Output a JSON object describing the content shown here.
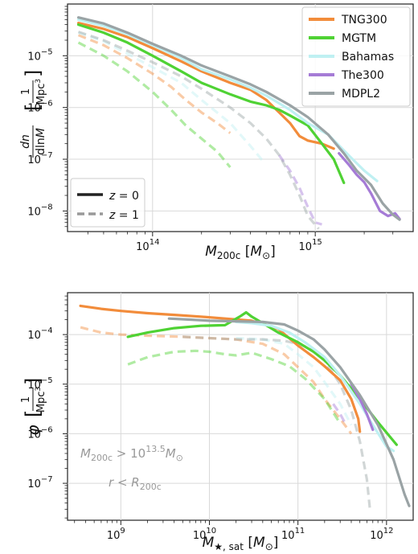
{
  "chart_data": [
    {
      "type": "line",
      "xscale": "log",
      "yscale": "log",
      "xlabel": "M_200c [M_⊙]",
      "ylabel": "dn / dlnM [1/Mpc³]",
      "xlim": [
        30000000000000.0,
        4000000000000000.0
      ],
      "ylim": [
        4e-09,
        0.0001
      ],
      "grid": true,
      "x_ticks": [
        {
          "value": 100000000000000.0,
          "label": "10",
          "exp": "14"
        },
        {
          "value": 1000000000000000.0,
          "label": "10",
          "exp": "15"
        }
      ],
      "y_ticks": [
        {
          "value": 1e-08,
          "label": "10",
          "exp": "−8"
        },
        {
          "value": 1e-07,
          "label": "10",
          "exp": "−7"
        },
        {
          "value": 1e-06,
          "label": "10",
          "exp": "−6"
        },
        {
          "value": 1e-05,
          "label": "10",
          "exp": "−5"
        }
      ],
      "legend_placement": "top-right",
      "style_legend_placement": "bottom-left",
      "style_legend": [
        {
          "label": "z = 0",
          "dash": "solid"
        },
        {
          "label": "z = 1",
          "dash": "dashed"
        }
      ],
      "series": [
        {
          "name": "TNG300",
          "color": "#f28c3b",
          "z": 0,
          "x": [
            35000000000000.0,
            50000000000000.0,
            70000000000000.0,
            100000000000000.0,
            150000000000000.0,
            200000000000000.0,
            300000000000000.0,
            400000000000000.0,
            500000000000000.0,
            600000000000000.0,
            700000000000000.0,
            800000000000000.0,
            900000000000000.0,
            1100000000000000.0,
            1300000000000000.0
          ],
          "y": [
            4.3e-05,
            3.3e-05,
            2.3e-05,
            1.4e-05,
            7.8e-06,
            5e-06,
            3e-06,
            2.2e-06,
            1.4e-06,
            8e-07,
            5e-07,
            2.8e-07,
            2.3e-07,
            2e-07,
            1.6e-07
          ]
        },
        {
          "name": "MGTM",
          "color": "#4fd234",
          "z": 0,
          "x": [
            35000000000000.0,
            50000000000000.0,
            70000000000000.0,
            100000000000000.0,
            150000000000000.0,
            200000000000000.0,
            300000000000000.0,
            400000000000000.0,
            500000000000000.0,
            600000000000000.0,
            700000000000000.0,
            900000000000000.0,
            1100000000000000.0,
            1300000000000000.0,
            1500000000000000.0
          ],
          "y": [
            4e-05,
            2.8e-05,
            1.8e-05,
            1e-05,
            5e-06,
            3e-06,
            1.8e-06,
            1.3e-06,
            1.1e-06,
            9e-07,
            7e-07,
            4.5e-07,
            2e-07,
            1e-07,
            3.5e-08
          ]
        },
        {
          "name": "Bahamas",
          "color": "#bff0f2",
          "z": 0,
          "x": [
            35000000000000.0,
            50000000000000.0,
            70000000000000.0,
            100000000000000.0,
            150000000000000.0,
            200000000000000.0,
            300000000000000.0,
            400000000000000.0,
            500000000000000.0,
            700000000000000.0,
            900000000000000.0,
            1200000000000000.0,
            1600000000000000.0,
            2000000000000000.0,
            2400000000000000.0
          ],
          "y": [
            5e-05,
            3.8e-05,
            2.6e-05,
            1.6e-05,
            9e-06,
            5.5e-06,
            3.5e-06,
            2.4e-06,
            1.7e-06,
            9e-07,
            5e-07,
            3e-07,
            1.2e-07,
            6e-08,
            3.8e-08
          ]
        },
        {
          "name": "The300",
          "color": "#a57bd6",
          "z": 0,
          "x": [
            1400000000000000.0,
            1600000000000000.0,
            1800000000000000.0,
            2000000000000000.0,
            2200000000000000.0,
            2500000000000000.0,
            2800000000000000.0,
            3100000000000000.0,
            3300000000000000.0
          ],
          "y": [
            1.3e-07,
            8e-08,
            5e-08,
            3.6e-08,
            2.2e-08,
            1e-08,
            8e-09,
            9e-09,
            7e-09
          ]
        },
        {
          "name": "MDPL2",
          "color": "#9aa3a5",
          "z": 0,
          "x": [
            35000000000000.0,
            50000000000000.0,
            70000000000000.0,
            100000000000000.0,
            150000000000000.0,
            200000000000000.0,
            300000000000000.0,
            400000000000000.0,
            500000000000000.0,
            700000000000000.0,
            900000000000000.0,
            1200000000000000.0,
            1500000000000000.0,
            1800000000000000.0,
            2200000000000000.0,
            2600000000000000.0,
            3000000000000000.0,
            3300000000000000.0
          ],
          "y": [
            5.5e-05,
            4.2e-05,
            2.8e-05,
            1.7e-05,
            1e-05,
            6.5e-06,
            4e-06,
            2.8e-06,
            2e-06,
            1.1e-06,
            6.5e-07,
            3e-07,
            1.3e-07,
            6e-08,
            3.2e-08,
            1.4e-08,
            8.5e-09,
            6.8e-09
          ]
        },
        {
          "name": "TNG300",
          "color": "#f28c3b",
          "z": 1,
          "x": [
            35000000000000.0,
            50000000000000.0,
            70000000000000.0,
            100000000000000.0,
            130000000000000.0,
            160000000000000.0,
            200000000000000.0,
            250000000000000.0,
            300000000000000.0
          ],
          "y": [
            2.5e-05,
            1.6e-05,
            9e-06,
            4.5e-06,
            2.5e-06,
            1.4e-06,
            8e-07,
            5e-07,
            3.2e-07
          ]
        },
        {
          "name": "MGTM",
          "color": "#4fd234",
          "z": 1,
          "x": [
            35000000000000.0,
            50000000000000.0,
            70000000000000.0,
            100000000000000.0,
            130000000000000.0,
            160000000000000.0,
            200000000000000.0,
            250000000000000.0,
            300000000000000.0
          ],
          "y": [
            1.8e-05,
            1e-05,
            5e-06,
            2e-06,
            9e-07,
            4.5e-07,
            2.5e-07,
            1.4e-07,
            7e-08
          ]
        },
        {
          "name": "Bahamas",
          "color": "#bff0f2",
          "z": 1,
          "x": [
            35000000000000.0,
            50000000000000.0,
            70000000000000.0,
            100000000000000.0,
            150000000000000.0,
            200000000000000.0,
            300000000000000.0,
            400000000000000.0,
            480000000000000.0
          ],
          "y": [
            2.8e-05,
            1.9e-05,
            1.1e-05,
            6e-06,
            3e-06,
            1.4e-06,
            5e-07,
            1.8e-07,
            9e-08
          ]
        },
        {
          "name": "The300",
          "color": "#a57bd6",
          "z": 1,
          "x": [
            600000000000000.0,
            700000000000000.0,
            800000000000000.0,
            900000000000000.0,
            1000000000000000.0,
            1100000000000000.0
          ],
          "y": [
            1.2e-07,
            6e-08,
            2.8e-08,
            1.2e-08,
            6e-09,
            5.5e-09
          ]
        },
        {
          "name": "MDPL2",
          "color": "#9aa3a5",
          "z": 1,
          "x": [
            35000000000000.0,
            50000000000000.0,
            70000000000000.0,
            100000000000000.0,
            150000000000000.0,
            200000000000000.0,
            300000000000000.0,
            400000000000000.0,
            500000000000000.0,
            600000000000000.0,
            700000000000000.0,
            800000000000000.0,
            900000000000000.0,
            1050000000000000.0
          ],
          "y": [
            2.9e-05,
            2e-05,
            1.25e-05,
            7.5e-06,
            4e-06,
            2.3e-06,
            1e-06,
            5e-07,
            2.5e-07,
            1.2e-07,
            5e-08,
            2e-08,
            8e-09,
            4.5e-09
          ]
        }
      ]
    },
    {
      "type": "line",
      "xscale": "log",
      "yscale": "log",
      "xlabel": "M_★,sat [M_⊙]",
      "ylabel": "φ [1/Mpc³]",
      "xlim": [
        250000000.0,
        2000000000000.0
      ],
      "ylim": [
        1.8e-08,
        0.0007
      ],
      "grid": true,
      "x_ticks": [
        {
          "value": 1000000000.0,
          "label": "10",
          "exp": "9"
        },
        {
          "value": 10000000000.0,
          "label": "10",
          "exp": "10"
        },
        {
          "value": 100000000000.0,
          "label": "10",
          "exp": "11"
        },
        {
          "value": 1000000000000.0,
          "label": "10",
          "exp": "12"
        }
      ],
      "y_ticks": [
        {
          "value": 1e-07,
          "label": "10",
          "exp": "−7"
        },
        {
          "value": 1e-06,
          "label": "10",
          "exp": "−6"
        },
        {
          "value": 1e-05,
          "label": "10",
          "exp": "−5"
        },
        {
          "value": 0.0001,
          "label": "10",
          "exp": "−4"
        }
      ],
      "annotations": [
        {
          "text_main": "M",
          "text_sub": "200c",
          "text_rest": " > 10",
          "text_sup": "13.5",
          "text_unit": "M",
          "text_unit_sub": "⊙"
        },
        {
          "text_main": "r < R",
          "text_sub": "200c"
        }
      ],
      "series": [
        {
          "name": "TNG300",
          "color": "#f28c3b",
          "z": 0,
          "x": [
            350000000.0,
            600000000.0,
            1000000000.0,
            2000000000.0,
            4000000000.0,
            8000000000.0,
            15000000000.0,
            30000000000.0,
            60000000000.0,
            100000000000.0,
            150000000000.0,
            200000000000.0,
            300000000000.0,
            400000000000.0,
            480000000000.0,
            500000000000.0
          ],
          "y": [
            0.00038,
            0.00033,
            0.0003,
            0.00027,
            0.00025,
            0.00023,
            0.00021,
            0.00019,
            0.00013,
            6e-05,
            3.5e-05,
            2.3e-05,
            1.2e-05,
            5e-06,
            2e-06,
            1.1e-06
          ]
        },
        {
          "name": "MGTM",
          "color": "#4fd234",
          "z": 0,
          "x": [
            1200000000.0,
            2000000000.0,
            4000000000.0,
            8000000000.0,
            15000000000.0,
            22000000000.0,
            26000000000.0,
            30000000000.0,
            40000000000.0,
            60000000000.0,
            100000000000.0,
            150000000000.0,
            200000000000.0,
            300000000000.0,
            500000000000.0,
            800000000000.0,
            1300000000000.0
          ],
          "y": [
            9e-05,
            0.00011,
            0.000135,
            0.00015,
            0.000155,
            0.00023,
            0.00028,
            0.00023,
            0.00017,
            0.00011,
            7e-05,
            4.5e-05,
            3e-05,
            1.5e-05,
            5e-06,
            1.7e-06,
            6e-07
          ]
        },
        {
          "name": "Bahamas",
          "color": "#bff0f2",
          "z": 0,
          "x": [
            20000000000.0,
            30000000000.0,
            50000000000.0,
            80000000000.0,
            120000000000.0,
            200000000000.0,
            300000000000.0,
            500000000000.0,
            700000000000.0,
            1000000000000.0,
            1200000000000.0
          ],
          "y": [
            0.00018,
            0.00017,
            0.00015,
            0.00011,
            7e-05,
            3.5e-05,
            1.5e-05,
            4e-06,
            1.5e-06,
            5.5e-07,
            4.5e-07
          ]
        },
        {
          "name": "The300",
          "color": "#a57bd6",
          "z": 0,
          "x": [
            400000000000.0,
            500000000000.0,
            600000000000.0,
            700000000000.0
          ],
          "y": [
            1e-05,
            5e-06,
            2.5e-06,
            1.2e-06
          ]
        },
        {
          "name": "MDPL2",
          "color": "#9aa3a5",
          "z": 0,
          "x": [
            3500000000.0,
            6000000000.0,
            10000000000.0,
            20000000000.0,
            40000000000.0,
            70000000000.0,
            100000000000.0,
            150000000000.0,
            200000000000.0,
            300000000000.0,
            500000000000.0,
            800000000000.0,
            1200000000000.0,
            1600000000000.0,
            1800000000000.0
          ],
          "y": [
            0.00021,
            0.0002,
            0.00019,
            0.000185,
            0.00018,
            0.00016,
            0.00012,
            8e-05,
            5e-05,
            2.2e-05,
            6e-06,
            1.5e-06,
            3e-07,
            6e-08,
            3.5e-08
          ]
        },
        {
          "name": "TNG300",
          "color": "#f28c3b",
          "z": 1,
          "x": [
            350000000.0,
            600000000.0,
            1000000000.0,
            2000000000.0,
            5000000000.0,
            10000000000.0,
            20000000000.0,
            40000000000.0,
            70000000000.0,
            100000000000.0,
            150000000000.0,
            200000000000.0,
            300000000000.0,
            400000000000.0
          ],
          "y": [
            0.00014,
            0.00011,
            0.0001,
            9.5e-05,
            9e-05,
            8.5e-05,
            8e-05,
            6.5e-05,
            4e-05,
            2.2e-05,
            1.1e-05,
            5e-06,
            2e-06,
            1e-06
          ]
        },
        {
          "name": "MGTM",
          "color": "#4fd234",
          "z": 1,
          "x": [
            1200000000.0,
            2000000000.0,
            4000000000.0,
            7000000000.0,
            10000000000.0,
            15000000000.0,
            20000000000.0,
            30000000000.0,
            50000000000.0,
            80000000000.0,
            120000000000.0,
            200000000000.0,
            300000000000.0
          ],
          "y": [
            2.5e-05,
            3.5e-05,
            4.5e-05,
            4.7e-05,
            4.5e-05,
            4e-05,
            3.8e-05,
            4.3e-05,
            3.2e-05,
            2.3e-05,
            1.3e-05,
            5e-06,
            1.6e-06
          ]
        },
        {
          "name": "Bahamas",
          "color": "#bff0f2",
          "z": 1,
          "x": [
            20000000000.0,
            40000000000.0,
            70000000000.0,
            100000000000.0,
            150000000000.0,
            200000000000.0,
            300000000000.0,
            400000000000.0
          ],
          "y": [
            8.5e-05,
            8e-05,
            6.5e-05,
            4e-05,
            2.2e-05,
            1.1e-05,
            4e-06,
            1.5e-06
          ]
        },
        {
          "name": "The300",
          "color": "#a57bd6",
          "z": 1,
          "x": [
            250000000000.0,
            300000000000.0,
            350000000000.0
          ],
          "y": [
            4e-06,
            2.5e-06,
            1.5e-06
          ]
        },
        {
          "name": "MDPL2",
          "color": "#9aa3a5",
          "z": 1,
          "x": [
            5000000000.0,
            10000000000.0,
            20000000000.0,
            40000000000.0,
            70000000000.0,
            100000000000.0,
            150000000000.0,
            200000000000.0,
            300000000000.0,
            400000000000.0,
            500000000000.0,
            600000000000.0,
            650000000000.0
          ],
          "y": [
            9e-05,
            8.5e-05,
            8e-05,
            8e-05,
            7.5e-05,
            6.5e-05,
            5e-05,
            3e-05,
            1e-05,
            3e-06,
            7e-07,
            1.2e-07,
            3e-08
          ]
        }
      ]
    }
  ]
}
